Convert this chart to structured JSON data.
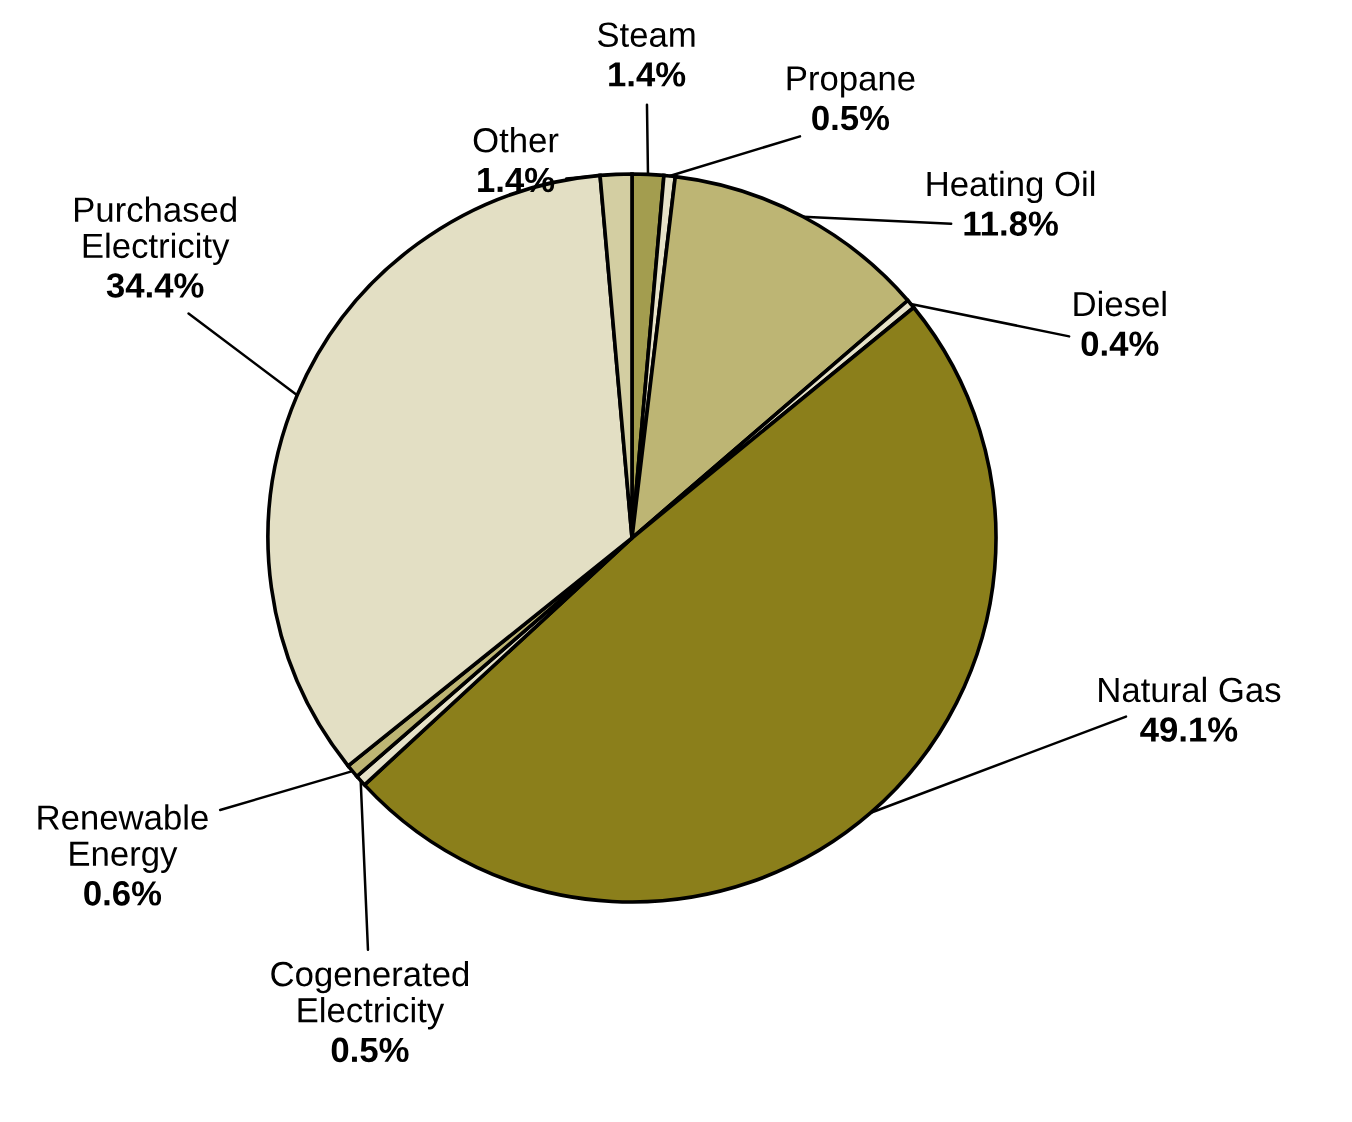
{
  "chart_data": {
    "type": "pie",
    "categories": [
      "Steam",
      "Propane",
      "Heating Oil",
      "Diesel",
      "Natural Gas",
      "Cogenerated Electricity",
      "Renewable Energy",
      "Purchased Electricity",
      "Other"
    ],
    "values": [
      1.4,
      0.5,
      11.8,
      0.4,
      49.1,
      0.5,
      0.6,
      34.4,
      1.4
    ],
    "value_labels": [
      "1.4%",
      "0.5%",
      "11.8%",
      "0.4%",
      "49.1%",
      "0.5%",
      "0.6%",
      "34.4%",
      "1.4%"
    ],
    "colors": [
      "#a39d4f",
      "#e6e2c8",
      "#bdb574",
      "#e6e2c8",
      "#8b7f1b",
      "#e6e2c8",
      "#bdb574",
      "#e3dfc4",
      "#d3cea2"
    ]
  }
}
